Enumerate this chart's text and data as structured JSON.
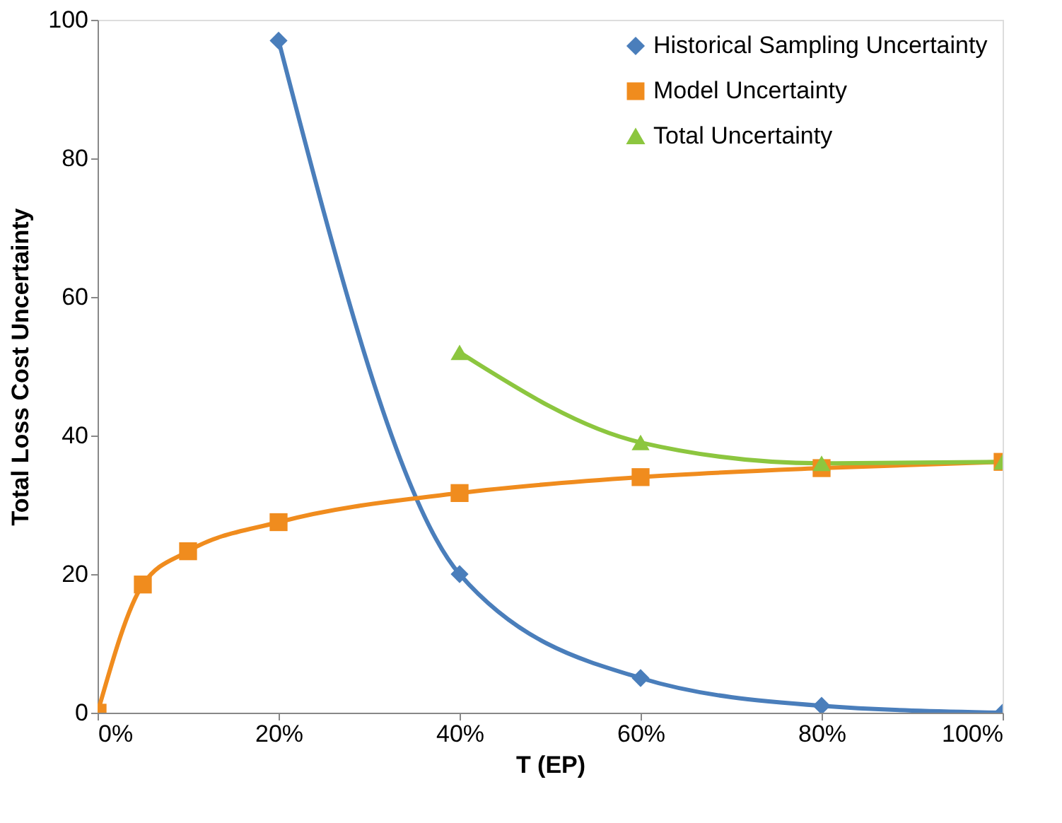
{
  "chart_data": {
    "type": "line",
    "xlabel": "T (EP)",
    "ylabel": "Total Loss Cost Uncertainty",
    "xlim": [
      0,
      100
    ],
    "ylim": [
      0,
      100
    ],
    "xticks": [
      {
        "value": 0,
        "label": "0%"
      },
      {
        "value": 20,
        "label": "20%"
      },
      {
        "value": 40,
        "label": "40%"
      },
      {
        "value": 60,
        "label": "60%"
      },
      {
        "value": 80,
        "label": "80%"
      },
      {
        "value": 100,
        "label": "100%"
      }
    ],
    "yticks": [
      0,
      20,
      40,
      60,
      80,
      100
    ],
    "grid": false,
    "legend": "top right",
    "line_style": "solid",
    "series": [
      {
        "name": "Historical Sampling Uncertainty",
        "color": "#4a7ebb",
        "marker": "diamond",
        "x": [
          20,
          40,
          60,
          80,
          100
        ],
        "values": [
          97,
          20,
          5,
          1,
          0
        ]
      },
      {
        "name": "Model Uncertainty",
        "color": "#f08c1e",
        "marker": "square",
        "x": [
          0,
          5,
          10,
          20,
          40,
          60,
          80,
          100
        ],
        "values": [
          0,
          18.5,
          23.3,
          27.5,
          31.7,
          34,
          35.3,
          36.2
        ]
      },
      {
        "name": "Total Uncertainty",
        "color": "#8cc63f",
        "marker": "triangle",
        "x": [
          40,
          60,
          80,
          100
        ],
        "values": [
          52,
          39,
          36,
          36.2
        ]
      }
    ]
  }
}
